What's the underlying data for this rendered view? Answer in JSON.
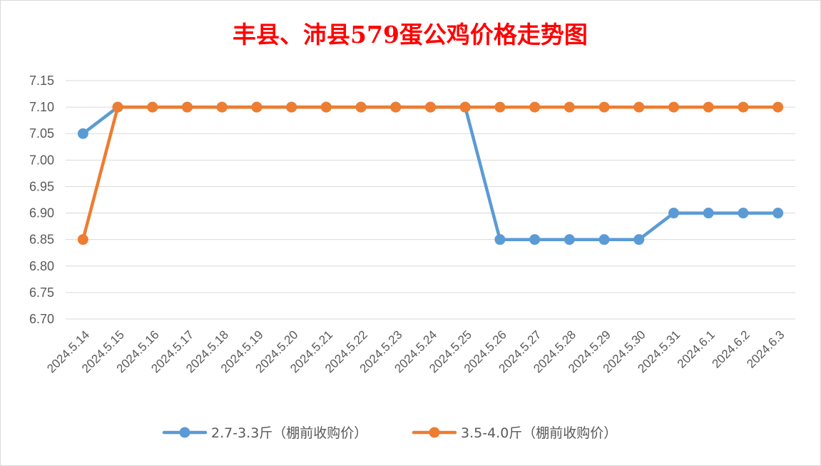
{
  "chart_data": {
    "type": "line",
    "title": "丰县、沛县579蛋公鸡价格走势图",
    "xlabel": "",
    "ylabel": "",
    "categories": [
      "2024.5.14",
      "2024.5.15",
      "2024.5.16",
      "2024.5.17",
      "2024.5.18",
      "2024.5.19",
      "2024.5.20",
      "2024.5.21",
      "2024.5.22",
      "2024.5.23",
      "2024.5.24",
      "2024.5.25",
      "2024.5.26",
      "2024.5.27",
      "2024.5.28",
      "2024.5.29",
      "2024.5.30",
      "2024.5.31",
      "2024.6.1",
      "2024.6.2",
      "2024.6.3"
    ],
    "yticks": [
      "7.15",
      "7.10",
      "7.05",
      "7.00",
      "6.95",
      "6.90",
      "6.85",
      "6.80",
      "6.75",
      "6.70"
    ],
    "ylim": [
      6.7,
      7.15
    ],
    "grid": true,
    "legend_position": "bottom",
    "series": [
      {
        "name": "2.7-3.3斤（棚前收购价）",
        "color": "#5b9bd5",
        "values": [
          7.05,
          7.1,
          7.1,
          7.1,
          7.1,
          7.1,
          7.1,
          7.1,
          7.1,
          7.1,
          7.1,
          7.1,
          6.85,
          6.85,
          6.85,
          6.85,
          6.85,
          6.9,
          6.9,
          6.9,
          6.9
        ]
      },
      {
        "name": "3.5-4.0斤（棚前收购价）",
        "color": "#ed7d31",
        "values": [
          6.85,
          7.1,
          7.1,
          7.1,
          7.1,
          7.1,
          7.1,
          7.1,
          7.1,
          7.1,
          7.1,
          7.1,
          7.1,
          7.1,
          7.1,
          7.1,
          7.1,
          7.1,
          7.1,
          7.1,
          7.1
        ]
      }
    ]
  }
}
